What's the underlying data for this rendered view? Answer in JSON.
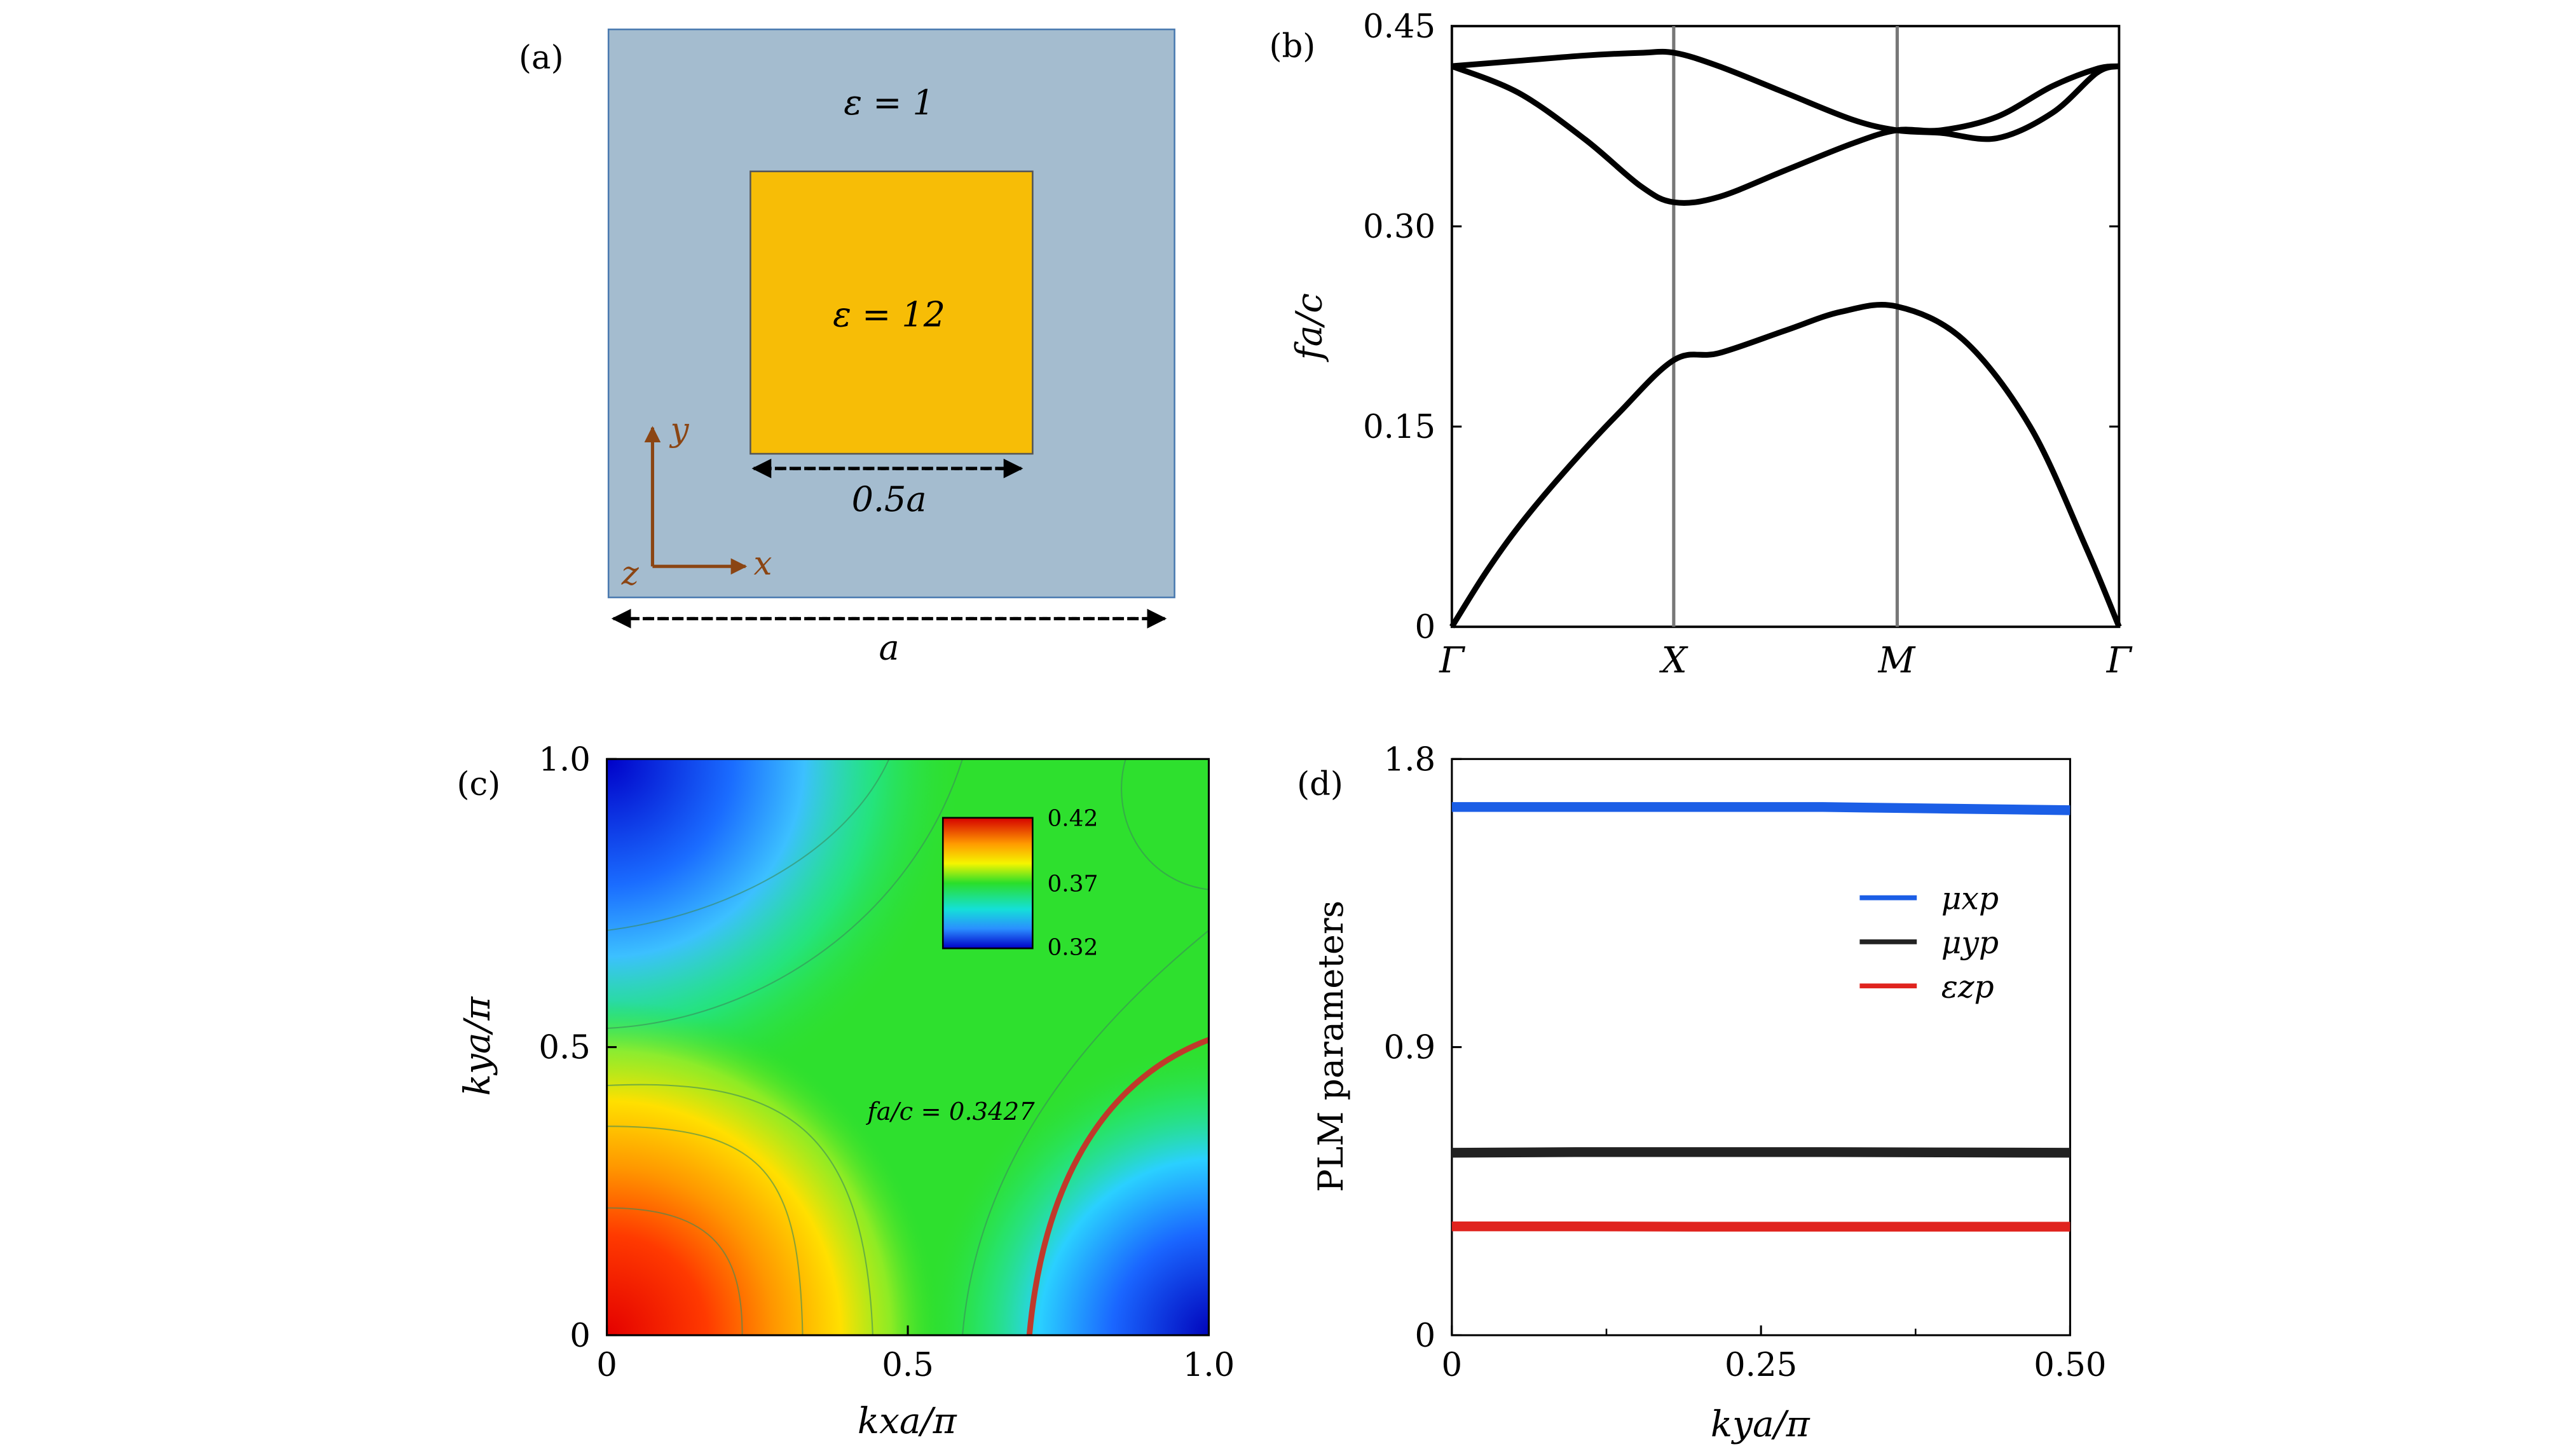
{
  "panels": {
    "a": {
      "label": "(a)",
      "eps_outer": "ε = 1",
      "eps_inner": "ε = 12",
      "inner_width_label": "0.5a",
      "cell_width_label": "a",
      "axis_y": "y",
      "axis_x": "x",
      "axis_z": "z",
      "colors": {
        "outer": "#a4bccf",
        "inner": "#f7bd06",
        "axes": "#8b4513"
      }
    },
    "b": {
      "label": "(b)",
      "ylabel": "fa/c",
      "y_ticks": [
        "0",
        "0.15",
        "0.30",
        "0.45"
      ],
      "x_ticks": [
        "Γ",
        "X",
        "M",
        "Γ"
      ]
    },
    "c": {
      "label": "(c)",
      "xlabel": "kxa/π",
      "ylabel": "kya/π",
      "x_ticks": [
        "0",
        "0.5",
        "1.0"
      ],
      "y_ticks": [
        "0",
        "0.5",
        "1.0"
      ],
      "colorbar_ticks": [
        "0.42",
        "0.37",
        "0.32"
      ],
      "annotation": "fa/c = 0.3427"
    },
    "d": {
      "label": "(d)",
      "xlabel": "kya/π",
      "ylabel": "PLM parameters",
      "x_ticks": [
        "0",
        "0.25",
        "0.50"
      ],
      "y_ticks": [
        "0",
        "0.9",
        "1.8"
      ],
      "legend": [
        "μxp",
        "μyp",
        "εzp"
      ]
    }
  },
  "chart_data": [
    {
      "panel": "b",
      "type": "line",
      "xlabel": "",
      "ylabel": "fa/c",
      "categories": [
        "Γ",
        "X",
        "M",
        "Γ"
      ],
      "ylim": [
        0,
        0.45
      ],
      "series": [
        {
          "x": [
            0,
            0.15,
            0.3,
            0.5,
            0.75,
            1.0,
            1.2,
            1.5,
            1.75,
            2.0,
            2.3,
            2.6,
            2.85,
            3.0
          ],
          "y": [
            0,
            0.04,
            0.075,
            0.115,
            0.16,
            0.2,
            0.205,
            0.222,
            0.236,
            0.24,
            0.215,
            0.15,
            0.06,
            0
          ]
        },
        {
          "x": [
            0,
            0.3,
            0.6,
            0.85,
            1.0,
            1.2,
            1.5,
            1.8,
            2.0,
            2.2,
            2.45,
            2.7,
            2.9,
            3.0
          ],
          "y": [
            0.42,
            0.4,
            0.365,
            0.33,
            0.318,
            0.322,
            0.342,
            0.362,
            0.372,
            0.372,
            0.382,
            0.405,
            0.418,
            0.42
          ]
        },
        {
          "x": [
            0,
            0.3,
            0.6,
            0.85,
            1.0,
            1.2,
            1.5,
            1.8,
            2.0,
            2.2,
            2.45,
            2.7,
            2.9,
            3.0
          ],
          "y": [
            0.42,
            0.424,
            0.428,
            0.43,
            0.43,
            0.42,
            0.4,
            0.38,
            0.372,
            0.37,
            0.366,
            0.385,
            0.415,
            0.42
          ]
        }
      ]
    },
    {
      "panel": "c",
      "type": "heatmap",
      "xlabel": "kxa/π",
      "ylabel": "kya/π",
      "xlim": [
        0,
        1.0
      ],
      "ylim": [
        0,
        1.0
      ],
      "color_range": [
        0.32,
        0.42
      ],
      "annotation": "fa/c = 0.3427"
    },
    {
      "panel": "d",
      "type": "line",
      "xlabel": "kya/π",
      "ylabel": "PLM parameters",
      "xlim": [
        0,
        0.5
      ],
      "ylim": [
        0,
        1.8
      ],
      "series": [
        {
          "name": "μxp",
          "color": "#1b5ee6",
          "x": [
            0,
            0.1,
            0.2,
            0.3,
            0.4,
            0.5
          ],
          "y": [
            1.65,
            1.65,
            1.65,
            1.65,
            1.645,
            1.64
          ]
        },
        {
          "name": "μyp",
          "color": "#222222",
          "x": [
            0,
            0.1,
            0.2,
            0.3,
            0.4,
            0.5
          ],
          "y": [
            0.57,
            0.572,
            0.572,
            0.572,
            0.571,
            0.57
          ]
        },
        {
          "name": "εzp",
          "color": "#e0231e",
          "x": [
            0,
            0.1,
            0.2,
            0.3,
            0.4,
            0.5
          ],
          "y": [
            0.34,
            0.34,
            0.339,
            0.339,
            0.339,
            0.339
          ]
        }
      ]
    }
  ]
}
